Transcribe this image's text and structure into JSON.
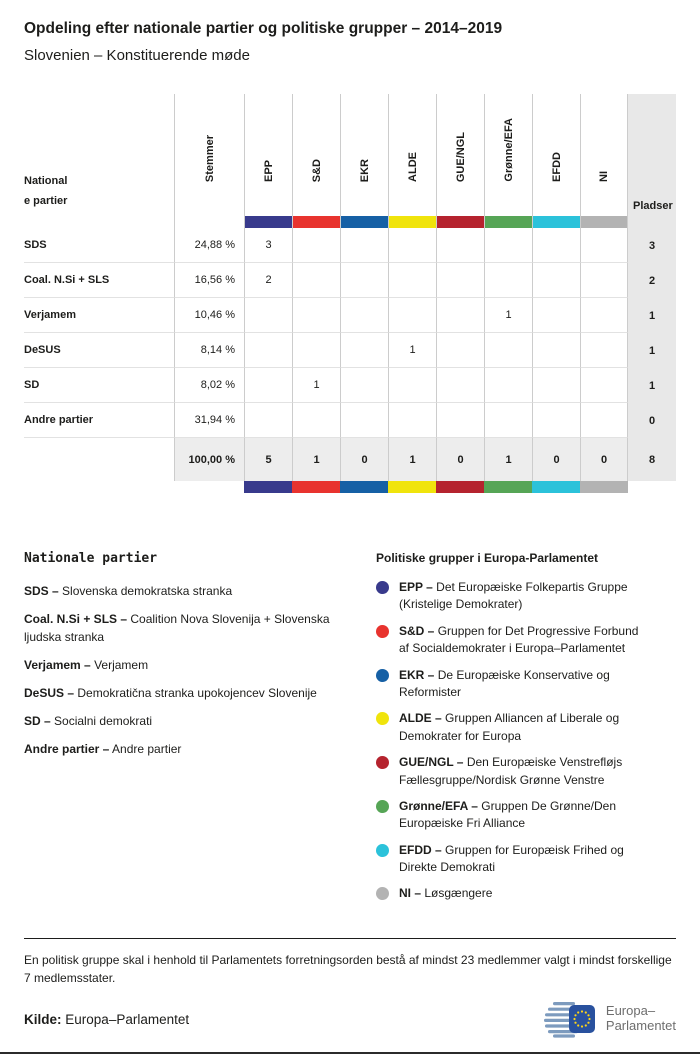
{
  "header": {
    "title": "Opdeling efter nationale partier og politiske grupper – 2014–2019",
    "subtitle": "Slovenien – Konstituerende møde"
  },
  "table_ui": {
    "first_col_lines": [
      "National",
      "e partier"
    ]
  },
  "chart_data": {
    "type": "table",
    "title": "Opdeling efter nationale partier og politiske grupper – 2014–2019",
    "subtitle": "Slovenien – Konstituerende møde",
    "columns": {
      "party": "Nationale partier",
      "votes": "Stemmer",
      "seats": "Pladser",
      "groups": [
        "EPP",
        "S&D",
        "EKR",
        "ALDE",
        "GUE/NGL",
        "Grønne/EFA",
        "EFDD",
        "NI"
      ]
    },
    "group_colors": {
      "EPP": "#383a8c",
      "S&D": "#e8332e",
      "EKR": "#1660a5",
      "ALDE": "#f0e40c",
      "GUE/NGL": "#b5232e",
      "Grønne/EFA": "#56a556",
      "EFDD": "#2bc2da",
      "NI": "#b3b3b3"
    },
    "rows": [
      {
        "party": "SDS",
        "votes": "24,88 %",
        "by_group": [
          "3",
          "",
          "",
          "",
          "",
          "",
          "",
          ""
        ],
        "seats": "3"
      },
      {
        "party": "Coal. N.Si + SLS",
        "votes": "16,56 %",
        "by_group": [
          "2",
          "",
          "",
          "",
          "",
          "",
          "",
          ""
        ],
        "seats": "2"
      },
      {
        "party": "Verjamem",
        "votes": "10,46 %",
        "by_group": [
          "",
          "",
          "",
          "",
          "",
          "1",
          "",
          ""
        ],
        "seats": "1"
      },
      {
        "party": "DeSUS",
        "votes": "8,14 %",
        "by_group": [
          "",
          "",
          "",
          "1",
          "",
          "",
          "",
          ""
        ],
        "seats": "1"
      },
      {
        "party": "SD",
        "votes": "8,02 %",
        "by_group": [
          "",
          "1",
          "",
          "",
          "",
          "",
          "",
          ""
        ],
        "seats": "1"
      },
      {
        "party": "Andre partier",
        "votes": "31,94 %",
        "by_group": [
          "",
          "",
          "",
          "",
          "",
          "",
          "",
          ""
        ],
        "seats": "0"
      }
    ],
    "total": {
      "votes": "100,00 %",
      "by_group": [
        "5",
        "1",
        "0",
        "1",
        "0",
        "1",
        "0",
        "0"
      ],
      "seats": "8"
    }
  },
  "legend_parties": {
    "title": "Nationale partier",
    "items": [
      {
        "label": "SDS –",
        "desc": "Slovenska demokratska stranka"
      },
      {
        "label": "Coal. N.Si + SLS –",
        "desc": "Coalition Nova Slovenija + Slovenska ljudska stranka"
      },
      {
        "label": "Verjamem –",
        "desc": "Verjamem"
      },
      {
        "label": "DeSUS –",
        "desc": "Demokratična stranka upokojencev Slovenije"
      },
      {
        "label": "SD –",
        "desc": "Socialni demokrati"
      },
      {
        "label": "Andre partier –",
        "desc": "Andre partier"
      }
    ]
  },
  "legend_groups": {
    "title": "Politiske grupper i Europa-Parlamentet",
    "items": [
      {
        "abbr": "EPP",
        "label": "EPP –",
        "desc": "Det Europæiske Folkepartis Gruppe (Kristelige Demokrater)",
        "color": "#383a8c"
      },
      {
        "abbr": "S&D",
        "label": "S&D –",
        "desc": "Gruppen for Det Progressive Forbund af Socialdemokrater i Europa–Parlamentet",
        "color": "#e8332e"
      },
      {
        "abbr": "EKR",
        "label": "EKR –",
        "desc": "De Europæiske Konservative og Reformister",
        "color": "#1660a5"
      },
      {
        "abbr": "ALDE",
        "label": "ALDE –",
        "desc": "Gruppen Alliancen af Liberale og Demokrater for Europa",
        "color": "#f0e40c"
      },
      {
        "abbr": "GUE/NGL",
        "label": "GUE/NGL –",
        "desc": "Den Europæiske Venstrefløjs Fællesgruppe/Nordisk Grønne Venstre",
        "color": "#b5232e"
      },
      {
        "abbr": "Grønne/EFA",
        "label": "Grønne/EFA –",
        "desc": "Gruppen De Grønne/Den Europæiske Fri Alliance",
        "color": "#56a556"
      },
      {
        "abbr": "EFDD",
        "label": "EFDD –",
        "desc": "Gruppen for Europæisk Frihed og Direkte Demokrati",
        "color": "#2bc2da"
      },
      {
        "abbr": "NI",
        "label": "NI –",
        "desc": "Løsgængere",
        "color": "#b3b3b3"
      }
    ]
  },
  "footer": {
    "note": "En politisk gruppe skal i henhold til Parlamentets forretningsorden bestå af mindst 23 medlemmer valgt i mindst forskellige 7 medlemsstater.",
    "source_label": "Kilde:",
    "source": "Europa–Parlamentet",
    "logo_lines": [
      "Europa–",
      "Parlamentet"
    ]
  }
}
